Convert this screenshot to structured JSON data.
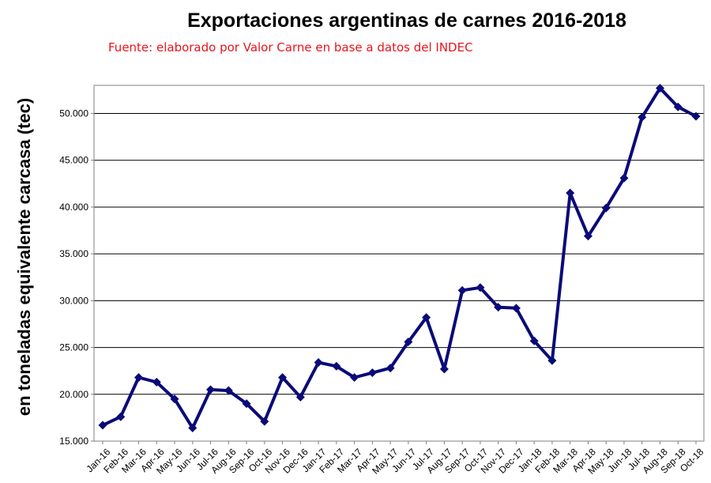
{
  "chart_data": {
    "type": "line",
    "title": "Exportaciones argentinas de carnes 2016-2018",
    "subtitle": "Fuente: elaborado por Valor Carne en base a datos del INDEC",
    "xlabel": "",
    "ylabel": "en toneladas equivalente carcasa (tec)",
    "ylim": [
      15000,
      53000
    ],
    "yticks": [
      15000,
      20000,
      25000,
      30000,
      35000,
      40000,
      45000,
      50000
    ],
    "ytick_labels": [
      "15.000",
      "20.000",
      "25.000",
      "30.000",
      "35.000",
      "40.000",
      "45.000",
      "50.000"
    ],
    "grid": "horizontal",
    "legend": "none",
    "line_color": "#0a0a78",
    "categories": [
      "Jan-16",
      "Feb-16",
      "Mar-16",
      "Apr-16",
      "May-16",
      "Jun-16",
      "Jul-16",
      "Aug-16",
      "Sep-16",
      "Oct-16",
      "Nov-16",
      "Dec-16",
      "Jan-17",
      "Feb-17",
      "Mar-17",
      "Apr-17",
      "May-17",
      "Jun-17",
      "Jul-17",
      "Aug-17",
      "Sep-17",
      "Oct-17",
      "Nov-17",
      "Dec-17",
      "Jan-18",
      "Feb-18",
      "Mar-18",
      "Apr-18",
      "May-18",
      "Jun-18",
      "Jul-18",
      "Aug-18",
      "Sep-18",
      "Oct-18"
    ],
    "series": [
      {
        "values": [
          16700,
          17600,
          21800,
          21300,
          19500,
          16400,
          20500,
          20400,
          19000,
          17100,
          21800,
          19700,
          23400,
          23000,
          21800,
          22300,
          22800,
          25600,
          28200,
          22700,
          31100,
          31400,
          29300,
          29200,
          25700,
          23600,
          41500,
          36900,
          39900,
          43100,
          49600,
          52700,
          50700,
          49700
        ]
      }
    ]
  }
}
